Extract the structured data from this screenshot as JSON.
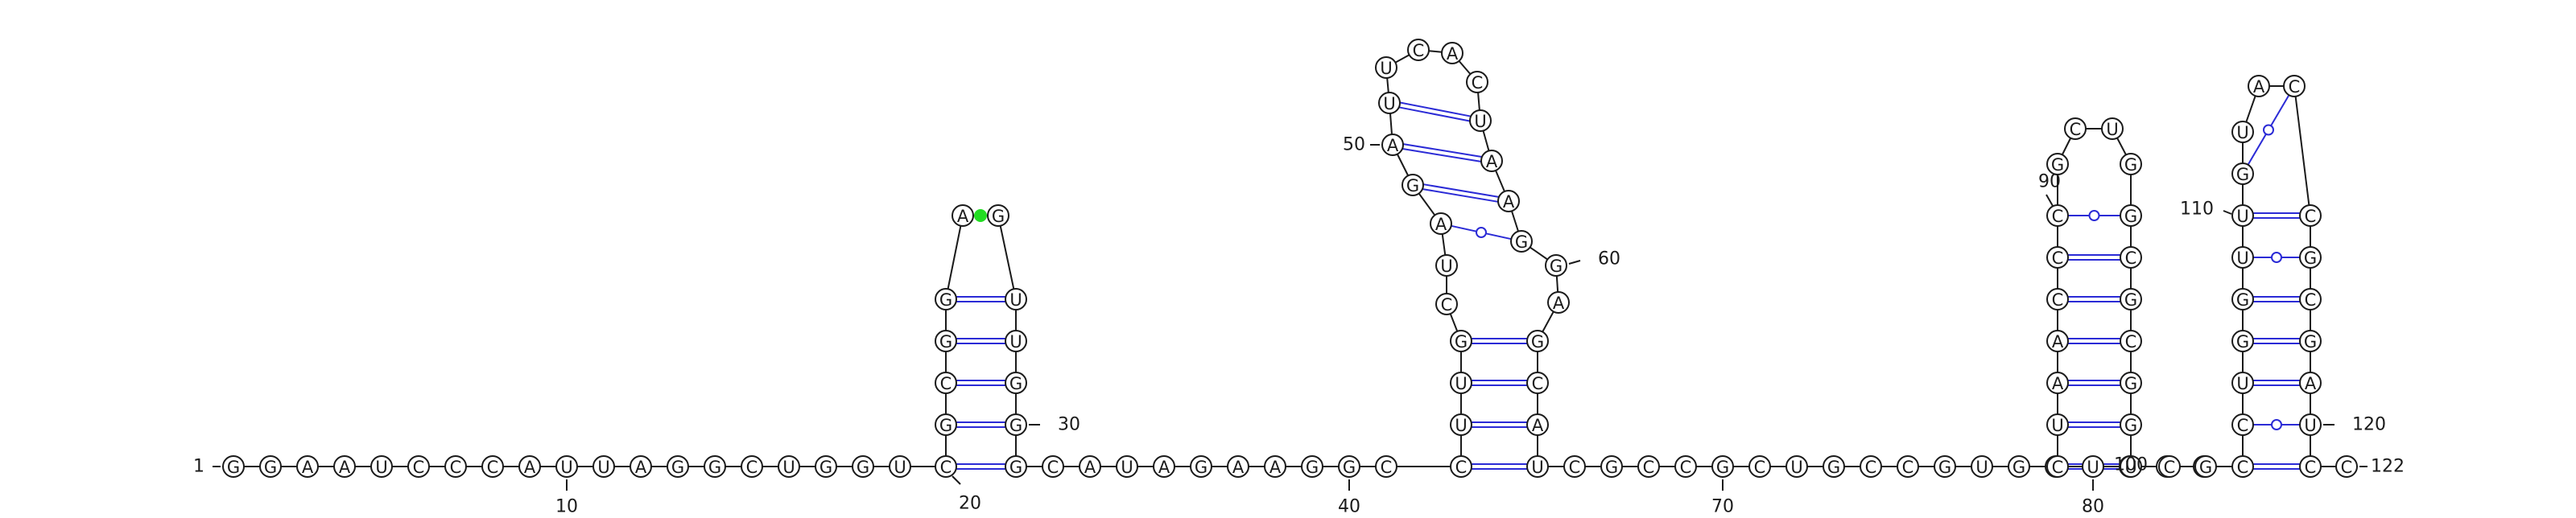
{
  "sequence": "GGAAUCCCAUUAGGCUGGUCGCGGAGUUGGGCAUAGAAGGCCUUGCUAGAUUCACUAAGGAGCAUCGCCGCUGCCGUGGUCGUCUAACCCGCUGGCGCGGUCGCCUGGUUGUACCGCGAUCC",
  "colors": {
    "backbone": "#1a1a1a",
    "wc_pair": "#2b2bd6",
    "gu_pair": "#2b2bd6",
    "highlight_pair": "#22dd22"
  },
  "position_labels": [
    {
      "n": 1,
      "text": "1"
    },
    {
      "n": 10,
      "text": "10"
    },
    {
      "n": 20,
      "text": "20"
    },
    {
      "n": 30,
      "text": "30"
    },
    {
      "n": 40,
      "text": "40"
    },
    {
      "n": 50,
      "text": "50"
    },
    {
      "n": 60,
      "text": "60"
    },
    {
      "n": 70,
      "text": "70"
    },
    {
      "n": 80,
      "text": "80"
    },
    {
      "n": 90,
      "text": "90"
    },
    {
      "n": 100,
      "text": "100"
    },
    {
      "n": 110,
      "text": "110"
    },
    {
      "n": 120,
      "text": "120"
    },
    {
      "n": 122,
      "text": "122"
    }
  ]
}
